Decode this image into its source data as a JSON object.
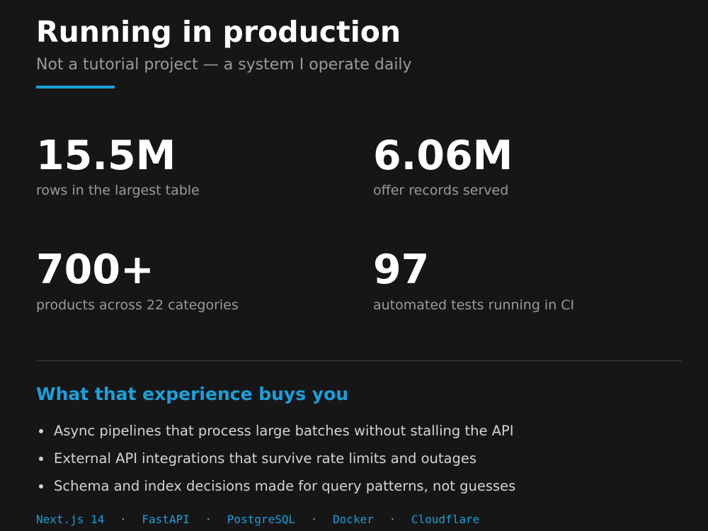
{
  "header": {
    "title": "Running in production",
    "subtitle": "Not a tutorial project — a system I operate daily"
  },
  "stats": [
    {
      "value": "15.5M",
      "label": "rows in the largest table"
    },
    {
      "value": "6.06M",
      "label": "offer records served"
    },
    {
      "value": "700+",
      "label": "products across 22 categories"
    },
    {
      "value": "97",
      "label": "automated tests running in CI"
    }
  ],
  "section": {
    "heading": "What that experience buys you",
    "bullets": [
      "Async pipelines that process large batches without stalling the API",
      "External API integrations that survive rate limits and outages",
      "Schema and index decisions made for query patterns, not guesses"
    ]
  },
  "stack": {
    "items": [
      "Next.js 14",
      "FastAPI",
      "PostgreSQL",
      "Docker",
      "Cloudflare"
    ],
    "separator": "·"
  }
}
